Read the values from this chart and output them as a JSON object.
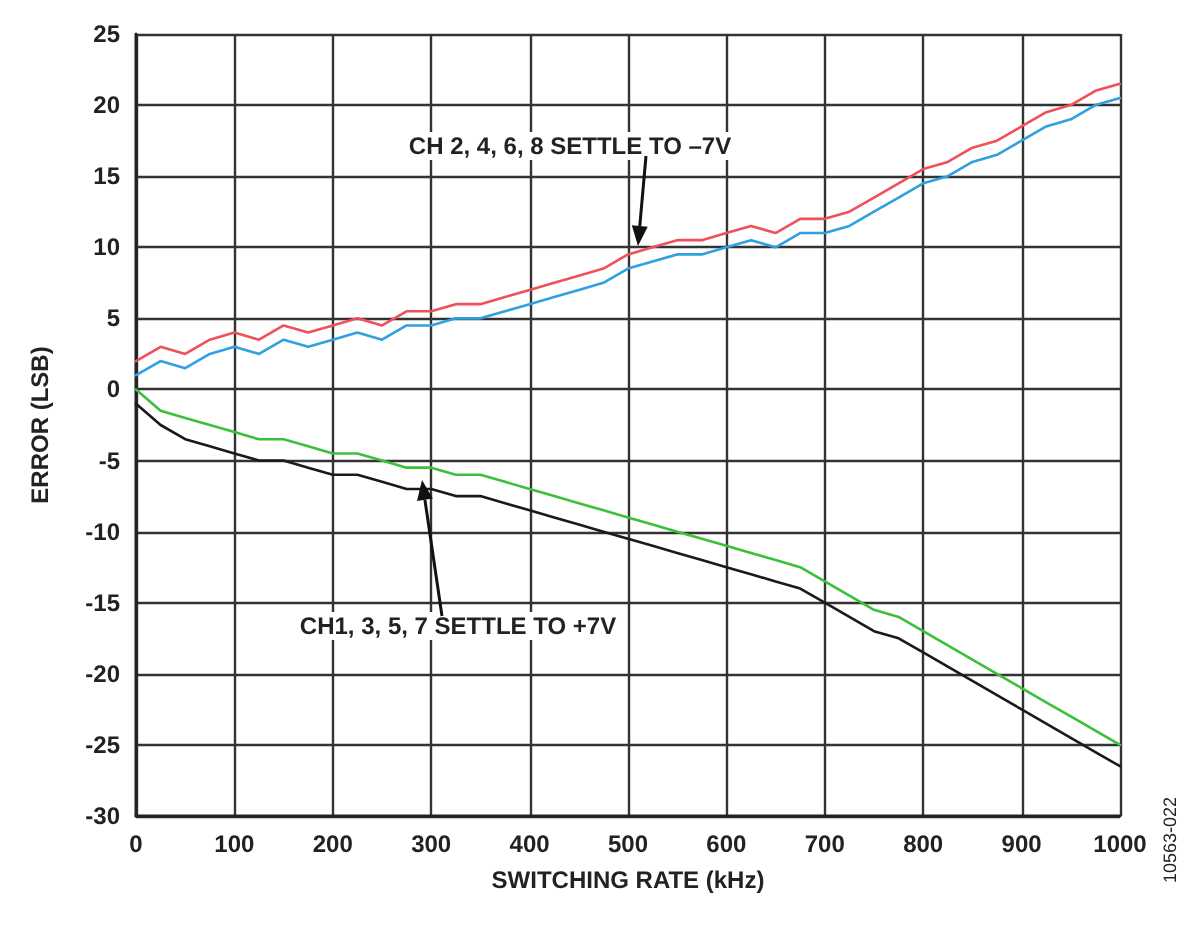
{
  "chart_data": {
    "type": "line",
    "xlabel": "SWITCHING RATE (kHz)",
    "ylabel": "ERROR (LSB)",
    "x": [
      0,
      25,
      50,
      75,
      100,
      125,
      150,
      175,
      200,
      225,
      250,
      275,
      300,
      325,
      350,
      375,
      400,
      425,
      450,
      475,
      500,
      525,
      550,
      575,
      600,
      625,
      650,
      675,
      700,
      725,
      750,
      775,
      800,
      825,
      850,
      875,
      900,
      925,
      950,
      975,
      1000
    ],
    "series": [
      {
        "color": "#30a0e0",
        "values": [
          1,
          2,
          1.5,
          2.5,
          3,
          2.5,
          3.5,
          3,
          3.5,
          4,
          3.5,
          4.5,
          4.5,
          5,
          5,
          5.5,
          6,
          6.5,
          7,
          7.5,
          8.5,
          9,
          9.5,
          9.5,
          10,
          10.5,
          10,
          11,
          11,
          11.5,
          12.5,
          13.5,
          14.5,
          15,
          16,
          16.5,
          17.5,
          18.5,
          19,
          20,
          20.5
        ]
      },
      {
        "color": "#f0505a",
        "values": [
          2,
          3,
          2.5,
          3.5,
          4,
          3.5,
          4.5,
          4,
          4.5,
          5,
          4.5,
          5.5,
          5.5,
          6,
          6,
          6.5,
          7,
          7.5,
          8,
          8.5,
          9.5,
          10,
          10.5,
          10.5,
          11,
          11.5,
          11,
          12,
          12,
          12.5,
          13.5,
          14.5,
          15.5,
          16,
          17,
          17.5,
          18.5,
          19.5,
          20,
          21,
          21.5
        ]
      },
      {
        "color": "#1a1a1a",
        "values": [
          -1,
          -2.5,
          -3.5,
          -4,
          -4.5,
          -5,
          -5,
          -5.5,
          -6,
          -6,
          -6.5,
          -7,
          -7,
          -7.5,
          -7.5,
          -8,
          -8.5,
          -9,
          -9.5,
          -10,
          -10.5,
          -11,
          -11.5,
          -12,
          -12.5,
          -13,
          -13.5,
          -14,
          -15,
          -16,
          -17,
          -17.5,
          -18.5,
          -19.5,
          -20.5,
          -21.5,
          -22.5,
          -23.5,
          -24.5,
          -25.5,
          -26.5
        ]
      },
      {
        "color": "#3cc03c",
        "values": [
          0,
          -1.5,
          -2,
          -2.5,
          -3,
          -3.5,
          -3.5,
          -4,
          -4.5,
          -4.5,
          -5,
          -5.5,
          -5.5,
          -6,
          -6,
          -6.5,
          -7,
          -7.5,
          -8,
          -8.5,
          -9,
          -9.5,
          -10,
          -10.5,
          -11,
          -11.5,
          -12,
          -12.5,
          -13.5,
          -14.5,
          -15.5,
          -16,
          -17,
          -18,
          -19,
          -20,
          -21,
          -22,
          -23,
          -24,
          -25
        ]
      }
    ],
    "xlim": [
      0,
      1000
    ],
    "xticks": [
      0,
      100,
      200,
      300,
      400,
      500,
      600,
      700,
      800,
      900,
      1000
    ],
    "ylim": [
      -30,
      25
    ],
    "yticks": [
      -30,
      -25,
      -20,
      -15,
      -10,
      -5,
      0,
      5,
      10,
      15,
      20,
      25
    ],
    "grid": true,
    "marker": "none",
    "line_style": "solid",
    "annotations": [
      "CH 2, 4, 6, 8 SETTLE TO –7V",
      "CH1, 3, 5, 7 SETTLE TO +7V",
      "10563-022"
    ]
  }
}
